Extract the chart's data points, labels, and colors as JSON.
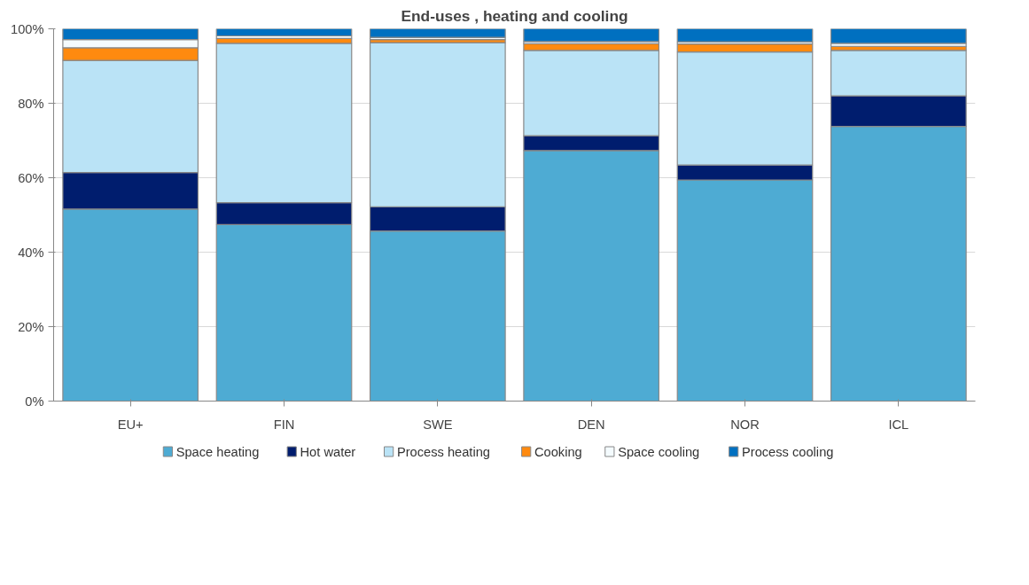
{
  "chart_data": {
    "type": "bar",
    "title": "End-uses , heating and cooling",
    "stacked": true,
    "categories": [
      "EU+",
      "FIN",
      "SWE",
      "DEN",
      "NOR",
      "ICL"
    ],
    "series": [
      {
        "name": "Space heating",
        "color": "#4eabd3",
        "values": [
          51.6,
          47.4,
          45.7,
          67.3,
          59.4,
          73.8
        ]
      },
      {
        "name": "Hot water",
        "color": "#001d6e",
        "values": [
          9.8,
          5.9,
          6.5,
          4.0,
          4.0,
          8.2
        ]
      },
      {
        "name": "Process heating",
        "color": "#bae3f6",
        "values": [
          30.1,
          42.8,
          44.1,
          22.9,
          30.4,
          12.2
        ]
      },
      {
        "name": "Cooking",
        "color": "#ff8a0f",
        "values": [
          3.4,
          1.3,
          0.8,
          1.8,
          2.1,
          1.1
        ]
      },
      {
        "name": "Space cooling",
        "color": "#f4fbfe",
        "values": [
          2.2,
          0.7,
          0.6,
          0.6,
          0.6,
          0.8
        ]
      },
      {
        "name": "Process cooling",
        "color": "#0070c0",
        "values": [
          2.9,
          1.9,
          2.3,
          3.4,
          3.5,
          3.9
        ]
      }
    ],
    "ylim": [
      0,
      100
    ],
    "yticks": [
      {
        "value": 0,
        "label": "0%"
      },
      {
        "value": 20,
        "label": "20%"
      },
      {
        "value": 40,
        "label": "40%"
      },
      {
        "value": 60,
        "label": "60%"
      },
      {
        "value": 80,
        "label": "80%"
      },
      {
        "value": 100,
        "label": "100%"
      }
    ],
    "grid": "y",
    "legend": "bottom"
  }
}
